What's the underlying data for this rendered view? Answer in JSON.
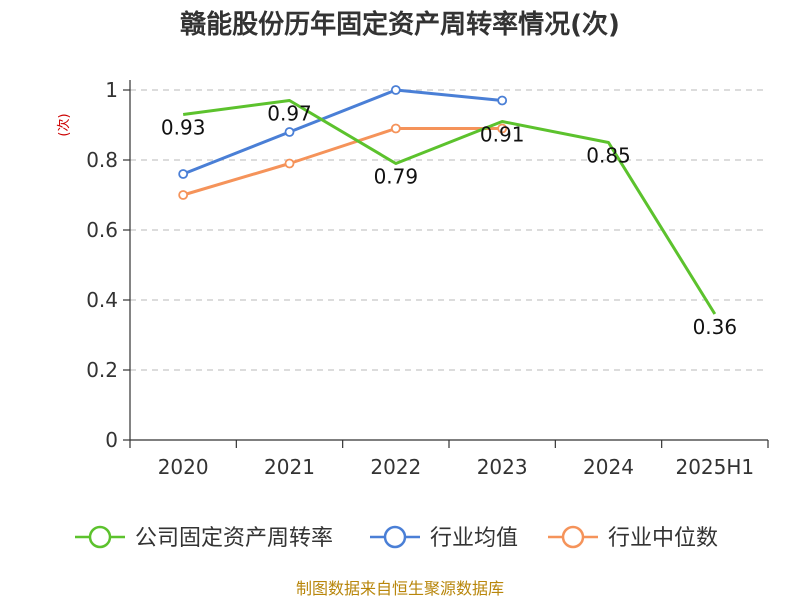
{
  "chart_data": {
    "type": "line",
    "title": "赣能股份历年固定资产周转率情况(次)",
    "ylabel": "(次)",
    "xlabel": "",
    "categories": [
      "2020",
      "2021",
      "2022",
      "2023",
      "2024",
      "2025H1"
    ],
    "ylim": [
      0,
      1
    ],
    "yticks": [
      "0",
      "0.2",
      "0.4",
      "0.6",
      "0.8",
      "1"
    ],
    "ytick_values": [
      0,
      0.2,
      0.4,
      0.6,
      0.8,
      1
    ],
    "grid": true,
    "legend_position": "bottom",
    "series": [
      {
        "name": "公司固定资产周转率",
        "color": "#5cc22d",
        "values": [
          0.93,
          0.97,
          0.79,
          0.91,
          0.85,
          0.36
        ],
        "labels": [
          "0.93",
          "0.97",
          "0.79",
          "0.91",
          "0.85",
          "0.36"
        ],
        "show_markers": false
      },
      {
        "name": "行业均值",
        "color": "#4a7fd6",
        "values": [
          0.76,
          0.88,
          1.0,
          0.97,
          null,
          null
        ],
        "show_markers": true
      },
      {
        "name": "行业中位数",
        "color": "#f5935a",
        "values": [
          0.7,
          0.79,
          0.89,
          0.89,
          null,
          null
        ],
        "show_markers": true
      }
    ]
  },
  "source": "制图数据来自恒生聚源数据库"
}
